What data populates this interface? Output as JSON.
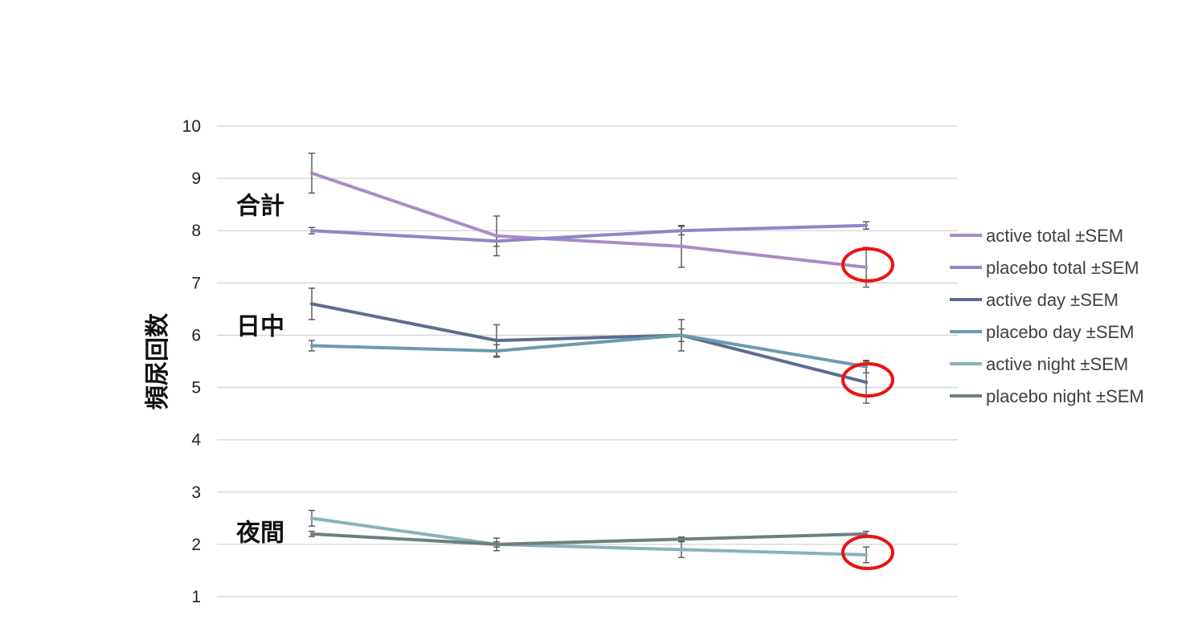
{
  "chart_data": {
    "type": "line",
    "title": "",
    "xlabel": "",
    "ylabel": "頻尿回数",
    "ylim": [
      1,
      10
    ],
    "yticks": [
      1,
      2,
      3,
      4,
      5,
      6,
      7,
      8,
      9,
      10
    ],
    "grid": "horizontal",
    "legend_position": "right",
    "x": [
      1,
      2,
      3,
      4
    ],
    "group_labels": [
      "合計",
      "日中",
      "夜間"
    ],
    "series": [
      {
        "name": "active total ±SEM",
        "color": "#a98bc8",
        "values": [
          9.1,
          7.9,
          7.7,
          7.3
        ],
        "err": [
          0.38,
          0.38,
          0.4,
          0.38
        ]
      },
      {
        "name": "placebo total ±SEM",
        "color": "#8e86c6",
        "values": [
          8.0,
          7.8,
          8.0,
          8.1
        ],
        "err": [
          0.06,
          0.1,
          0.08,
          0.07
        ]
      },
      {
        "name": "active day ±SEM",
        "color": "#5b6c8f",
        "values": [
          6.6,
          5.9,
          6.0,
          5.1
        ],
        "err": [
          0.3,
          0.3,
          0.3,
          0.4
        ]
      },
      {
        "name": "placebo day ±SEM",
        "color": "#6b9ab0",
        "values": [
          5.8,
          5.7,
          6.0,
          5.4
        ],
        "err": [
          0.1,
          0.12,
          0.12,
          0.12
        ]
      },
      {
        "name": "active night ±SEM",
        "color": "#87b3bb",
        "values": [
          2.5,
          2.0,
          1.9,
          1.8
        ],
        "err": [
          0.15,
          0.12,
          0.15,
          0.15
        ]
      },
      {
        "name": "placebo night ±SEM",
        "color": "#6e7f80",
        "values": [
          2.2,
          2.0,
          2.1,
          2.2
        ],
        "err": [
          0.05,
          0.05,
          0.04,
          0.05
        ]
      }
    ],
    "highlights": [
      {
        "x": 4,
        "y": 7.3
      },
      {
        "x": 4,
        "y": 5.1
      },
      {
        "x": 4,
        "y": 1.8
      }
    ],
    "highlight_color": "#ee1111"
  }
}
